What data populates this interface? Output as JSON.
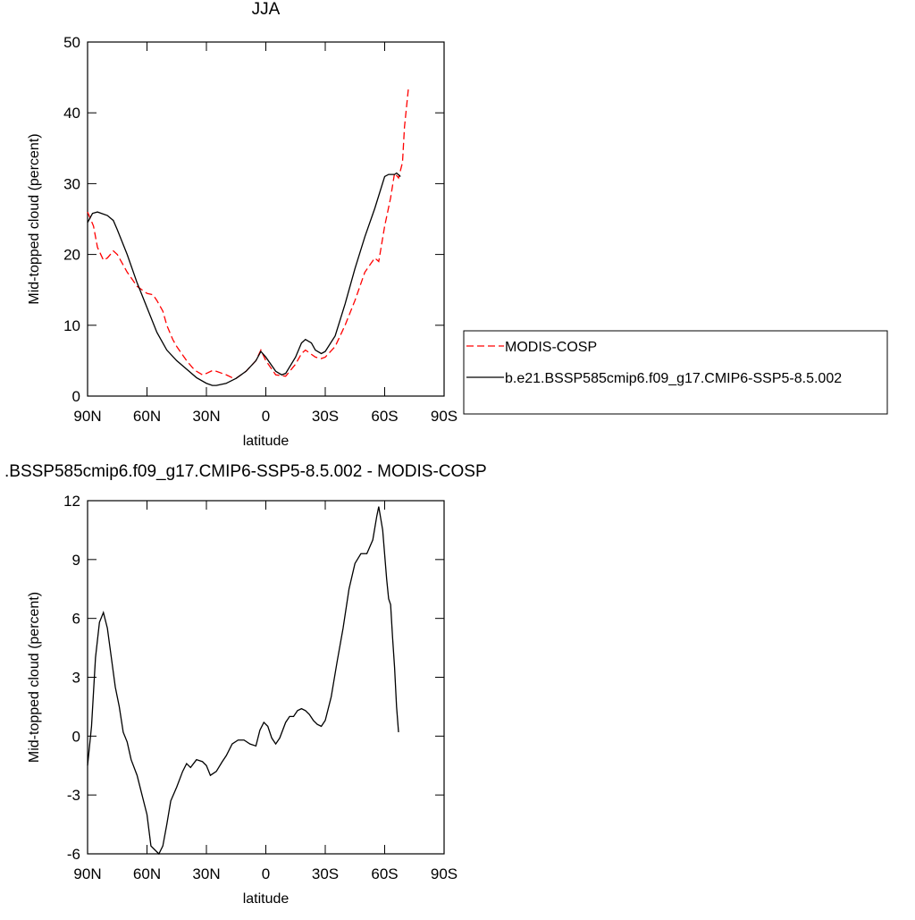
{
  "chart_data": [
    {
      "type": "line",
      "title": "JJA",
      "x_label": "latitude",
      "y_label": "Mid-topped cloud (percent)",
      "xlim": [
        90,
        -90
      ],
      "ylim": [
        0,
        50
      ],
      "xticks": [
        {
          "value": 90,
          "label": "90N"
        },
        {
          "value": 60,
          "label": "60N"
        },
        {
          "value": 30,
          "label": "30N"
        },
        0,
        {
          "value": -30,
          "label": "30S"
        },
        {
          "value": -60,
          "label": "60S"
        },
        {
          "value": -90,
          "label": "90S"
        }
      ],
      "yticks": [
        0,
        10,
        20,
        30,
        40,
        50
      ],
      "legend": "right",
      "series": [
        {
          "name": "MODIS-COSP",
          "color": "#ff0000",
          "line_style": "dashed",
          "x": [
            90,
            87,
            85,
            82,
            80,
            77,
            75,
            70,
            65,
            60,
            57,
            55,
            52,
            50,
            47,
            45,
            40,
            37,
            35,
            32,
            30,
            27,
            25,
            20,
            17,
            15,
            10,
            5,
            2.5,
            0,
            -5,
            -10,
            -15,
            -18,
            -20,
            -25,
            -28,
            -30,
            -35,
            -40,
            -45,
            -50,
            -55,
            -57,
            -60,
            -63,
            -65,
            -67,
            -69,
            -70,
            -72
          ],
          "values": [
            26,
            24,
            21,
            19.2,
            19.5,
            20.5,
            20,
            17.5,
            15.5,
            14.5,
            14.3,
            13.5,
            12,
            10,
            8,
            7,
            5,
            4,
            3.5,
            3.0,
            3.2,
            3.6,
            3.5,
            3.0,
            2.6,
            2.5,
            3.5,
            5,
            6.5,
            5,
            3,
            2.8,
            4.5,
            6.0,
            6.5,
            5.5,
            5.3,
            5.5,
            7,
            10,
            13.5,
            17.5,
            19.5,
            19,
            24,
            28,
            31.5,
            30.8,
            33,
            38,
            43.5
          ]
        },
        {
          "name": "b.e21.BSSP585cmip6.f09_g17.CMIP6-SSP5-8.5.002",
          "color": "#000000",
          "line_style": "solid",
          "x": [
            90,
            87.5,
            85,
            80,
            77,
            75,
            70,
            65,
            60,
            55,
            50,
            45,
            40,
            35,
            30,
            27,
            25,
            20,
            15,
            10,
            5,
            2.5,
            0,
            -5,
            -8,
            -10,
            -15,
            -18,
            -20,
            -23,
            -25,
            -28,
            -30,
            -35,
            -40,
            -45,
            -50,
            -55,
            -60,
            -62,
            -65,
            -66,
            -68
          ],
          "values": [
            24.5,
            25.8,
            26.0,
            25.5,
            24.8,
            23.5,
            20,
            16,
            12.5,
            9,
            6.5,
            5,
            3.8,
            2.6,
            1.8,
            1.5,
            1.5,
            1.8,
            2.5,
            3.5,
            5,
            6.3,
            5.5,
            3.5,
            3.0,
            3.2,
            5.5,
            7.5,
            8,
            7.5,
            6.5,
            6.0,
            6.3,
            8.5,
            13,
            18,
            22.5,
            26.5,
            31,
            31.3,
            31.3,
            31.5,
            31.0
          ]
        }
      ]
    },
    {
      "type": "line",
      "title": ".BSSP585cmip6.f09_g17.CMIP6-SSP5-8.5.002 - MODIS-COSP",
      "x_label": "latitude",
      "y_label": "Mid-topped cloud (percent)",
      "xlim": [
        90,
        -90
      ],
      "ylim": [
        -6,
        12
      ],
      "xticks": [
        {
          "value": 90,
          "label": "90N"
        },
        {
          "value": 60,
          "label": "60N"
        },
        {
          "value": 30,
          "label": "30N"
        },
        0,
        {
          "value": -30,
          "label": "30S"
        },
        {
          "value": -60,
          "label": "60S"
        },
        {
          "value": -90,
          "label": "90S"
        }
      ],
      "yticks": [
        -6,
        -3,
        0,
        3,
        6,
        9,
        12
      ],
      "series": [
        {
          "color": "#000000",
          "line_style": "solid",
          "x": [
            90,
            88,
            86,
            84,
            82,
            80,
            78,
            76,
            74,
            72,
            70,
            68,
            65,
            63,
            60,
            58,
            56,
            54,
            52,
            50,
            48,
            45,
            42,
            40,
            38,
            35,
            32,
            30,
            28,
            25,
            22,
            20,
            17,
            14,
            11,
            8,
            5,
            3,
            1,
            -1,
            -3,
            -5,
            -7,
            -10,
            -12,
            -14,
            -16,
            -18,
            -20,
            -22,
            -24,
            -26,
            -28,
            -30,
            -33,
            -36,
            -39,
            -42,
            -45,
            -48,
            -51,
            -54,
            -56,
            -57,
            -59,
            -61,
            -62,
            -63,
            -64,
            -65,
            -66,
            -67
          ],
          "values": [
            -1.5,
            0.5,
            4,
            5.8,
            6.3,
            5.5,
            4,
            2.5,
            1.5,
            0.2,
            -0.3,
            -1.2,
            -2,
            -2.8,
            -4,
            -5.6,
            -5.8,
            -6.0,
            -5.6,
            -4.5,
            -3.3,
            -2.6,
            -1.8,
            -1.4,
            -1.6,
            -1.2,
            -1.3,
            -1.5,
            -2.0,
            -1.8,
            -1.3,
            -1.0,
            -0.4,
            -0.2,
            -0.2,
            -0.4,
            -0.5,
            0.3,
            0.7,
            0.5,
            -0.1,
            -0.4,
            -0.1,
            0.7,
            1.0,
            1.0,
            1.3,
            1.4,
            1.3,
            1.1,
            0.8,
            0.6,
            0.5,
            0.8,
            2.0,
            3.8,
            5.5,
            7.5,
            8.8,
            9.3,
            9.3,
            10,
            11.2,
            11.7,
            10.5,
            8.0,
            7.0,
            6.7,
            5,
            3.5,
            1.5,
            0.2
          ]
        }
      ]
    }
  ]
}
